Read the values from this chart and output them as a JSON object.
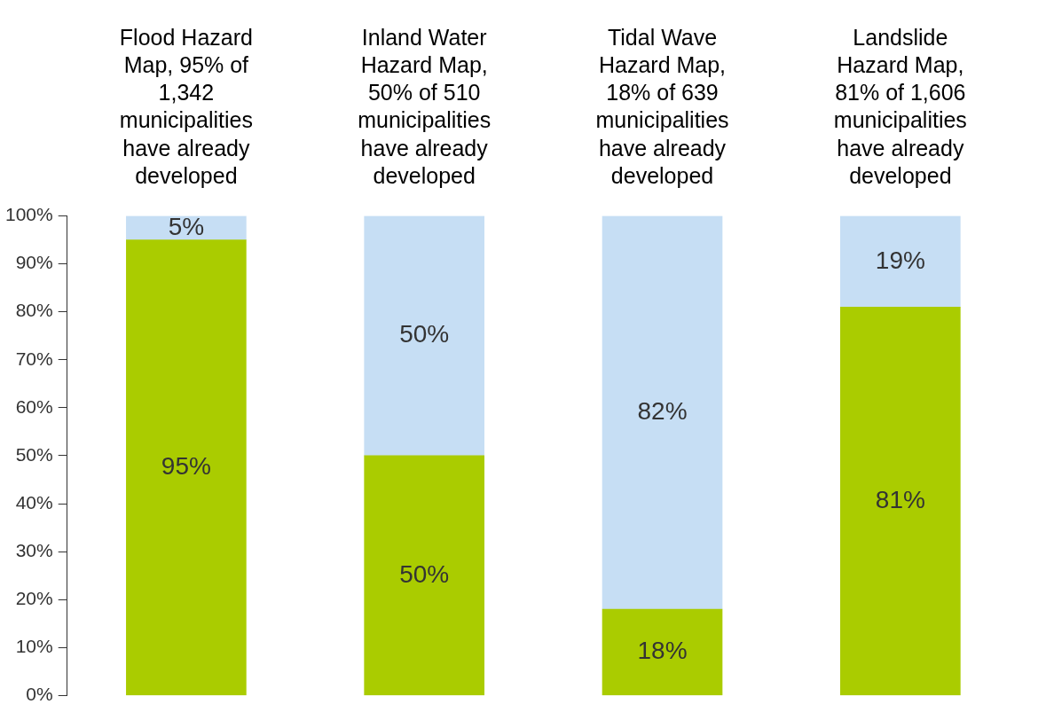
{
  "chart_data": {
    "type": "bar",
    "stacked": true,
    "categories": [
      "Flood Hazard Map, 95% of 1,342 municipalities have already developed",
      "Inland Water Hazard Map, 50% of 510 municipalities have already developed",
      "Tidal Wave Hazard Map, 18% of 639 municipalities have already developed",
      "Landslide Hazard Map, 81% of 1,606 municipalities have already developed"
    ],
    "series": [
      {
        "color": "#aacc00",
        "values": [
          95,
          50,
          18,
          81
        ],
        "value_labels": [
          "95%",
          "50%",
          "18%",
          "81%"
        ]
      },
      {
        "color": "#c6def4",
        "values": [
          5,
          50,
          82,
          19
        ],
        "value_labels": [
          "5%",
          "50%",
          "82%",
          "19%"
        ]
      }
    ],
    "ylim": [
      0,
      100
    ],
    "yticks": [
      {
        "value": 0,
        "label": "0%"
      },
      {
        "value": 10,
        "label": "10%"
      },
      {
        "value": 20,
        "label": "20%"
      },
      {
        "value": 30,
        "label": "30%"
      },
      {
        "value": 40,
        "label": "40%"
      },
      {
        "value": 50,
        "label": "50%"
      },
      {
        "value": 60,
        "label": "60%"
      },
      {
        "value": 70,
        "label": "70%"
      },
      {
        "value": 80,
        "label": "80%"
      },
      {
        "value": 90,
        "label": "90%"
      },
      {
        "value": 100,
        "label": "100%"
      }
    ],
    "grid": false,
    "legend": false
  }
}
